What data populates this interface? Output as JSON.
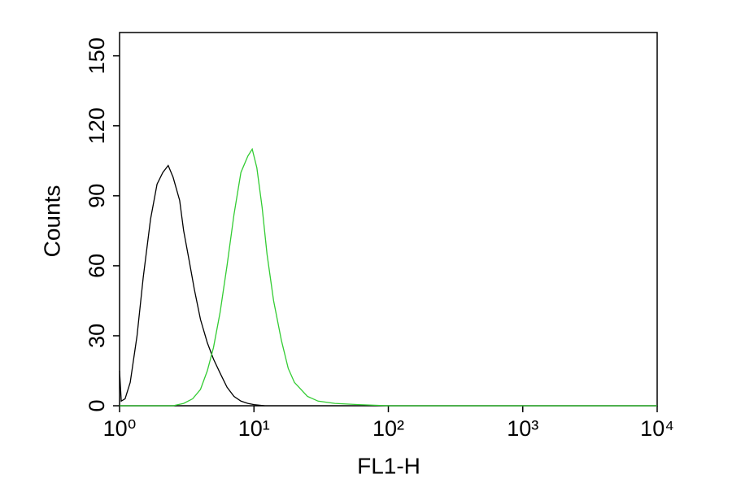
{
  "chart_data": {
    "type": "line",
    "xlabel": "FL1-H",
    "ylabel": "Counts",
    "xscale": "log",
    "xlim": [
      1,
      10000
    ],
    "xticks": [
      {
        "value": 1,
        "label": "10⁰"
      },
      {
        "value": 10,
        "label": "10¹"
      },
      {
        "value": 100,
        "label": "10²"
      },
      {
        "value": 1000,
        "label": "10³"
      },
      {
        "value": 10000,
        "label": "10⁴"
      }
    ],
    "ylim": [
      0,
      160
    ],
    "yticks": [
      0,
      30,
      60,
      90,
      120,
      150
    ],
    "series": [
      {
        "color": "#000000",
        "x": [
          1.0,
          1.03,
          1.1,
          1.2,
          1.35,
          1.5,
          1.7,
          1.9,
          2.1,
          2.3,
          2.5,
          2.8,
          3.0,
          3.3,
          3.6,
          4.0,
          4.5,
          5.0,
          5.6,
          6.3,
          7.1,
          8.0,
          9.0,
          10,
          12
        ],
        "values": [
          15,
          2,
          3,
          10,
          30,
          55,
          80,
          95,
          100,
          103,
          98,
          88,
          75,
          62,
          50,
          37,
          27,
          20,
          14,
          8,
          4,
          2,
          1,
          0.5,
          0
        ]
      },
      {
        "color": "#33cc33",
        "x": [
          1,
          2.5,
          3,
          3.5,
          4,
          4.5,
          5,
          5.6,
          6.3,
          7.1,
          8,
          9,
          9.7,
          10.5,
          11.5,
          12.5,
          14,
          16,
          18,
          20,
          25,
          30,
          40,
          60,
          100,
          1000,
          10000
        ],
        "values": [
          0,
          0,
          1,
          3,
          7,
          15,
          25,
          40,
          60,
          82,
          100,
          107,
          110,
          102,
          85,
          65,
          45,
          28,
          16,
          10,
          4,
          2,
          1,
          0.5,
          0,
          0,
          0
        ]
      }
    ]
  }
}
